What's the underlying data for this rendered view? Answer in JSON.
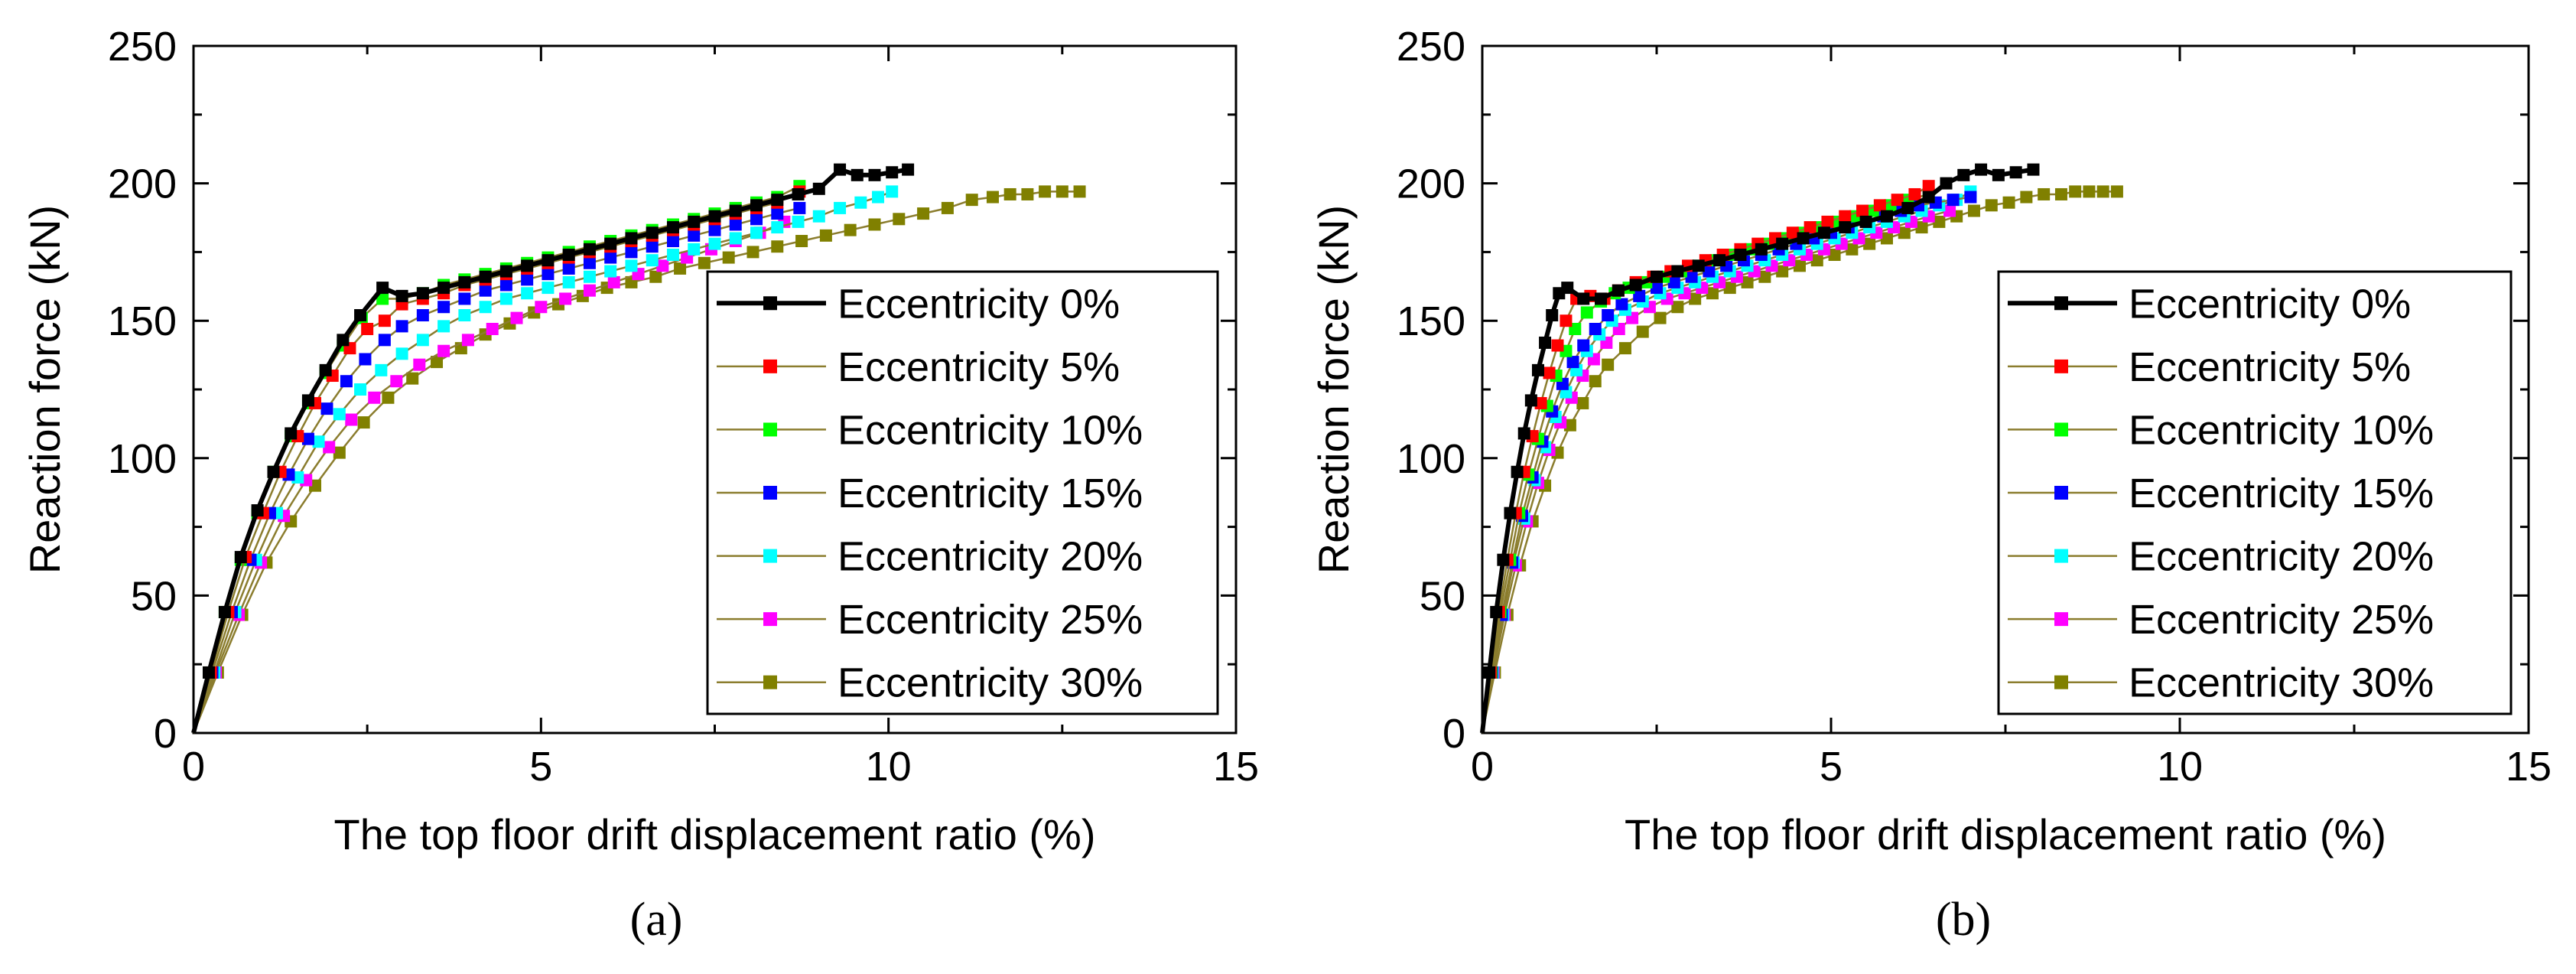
{
  "colors": {
    "e0": "#000000",
    "e5": "#ff0000",
    "e10": "#00ff00",
    "e15": "#0000ff",
    "e20": "#00ffff",
    "e25": "#ff00ff",
    "e30": "#808000",
    "thin_line": "#8b7d2e"
  },
  "chart_data": [
    {
      "panel": "a",
      "caption": "(a)",
      "type": "line",
      "xlabel": "The top floor drift displacement ratio (%)",
      "ylabel": "Reaction force (kN)",
      "xlim": [
        0,
        15
      ],
      "ylim": [
        0,
        250
      ],
      "xticks": [
        "0",
        "5",
        "10",
        "15"
      ],
      "yticks": [
        "0",
        "50",
        "100",
        "150",
        "200",
        "250"
      ],
      "legend_position": "right",
      "series": [
        {
          "name": "Eccentricity 0%",
          "color_key": "e0",
          "x": [
            0,
            0.22,
            0.45,
            0.68,
            0.92,
            1.15,
            1.4,
            1.65,
            1.9,
            2.15,
            2.4,
            2.72,
            3.0,
            3.3,
            3.6,
            3.9,
            4.2,
            4.5,
            4.8,
            5.1,
            5.4,
            5.7,
            6.0,
            6.3,
            6.6,
            6.9,
            7.2,
            7.5,
            7.8,
            8.1,
            8.4,
            8.7,
            9.0,
            9.3,
            9.55,
            9.8,
            10.05,
            10.28
          ],
          "y": [
            0,
            22,
            44,
            64,
            81,
            95,
            109,
            121,
            132,
            143,
            152,
            162,
            159,
            160,
            162,
            164,
            166,
            168,
            170,
            172,
            174,
            176,
            178,
            180,
            182,
            184,
            186,
            188,
            190,
            192,
            194,
            196,
            198,
            205,
            203,
            203,
            204,
            205
          ]
        },
        {
          "name": "Eccentricity 5%",
          "color_key": "e5",
          "x": [
            0,
            0.25,
            0.5,
            0.75,
            1.0,
            1.25,
            1.5,
            1.75,
            2.0,
            2.25,
            2.5,
            2.75,
            3.0,
            3.3,
            3.6,
            3.9,
            4.2,
            4.5,
            4.8,
            5.1,
            5.4,
            5.7,
            6.0,
            6.3,
            6.6,
            6.9,
            7.2,
            7.5,
            7.8,
            8.1,
            8.4,
            8.72
          ],
          "y": [
            0,
            22,
            44,
            64,
            80,
            95,
            108,
            120,
            130,
            140,
            147,
            150,
            156,
            158,
            160,
            163,
            165,
            167,
            169,
            171,
            173,
            175,
            177,
            179,
            181,
            183,
            185,
            187,
            189,
            191,
            193,
            197
          ]
        },
        {
          "name": "Eccentricity 10%",
          "color_key": "e10",
          "x": [
            0,
            0.22,
            0.45,
            0.68,
            0.92,
            1.15,
            1.4,
            1.65,
            1.9,
            2.15,
            2.42,
            2.72,
            3.0,
            3.3,
            3.6,
            3.9,
            4.2,
            4.5,
            4.8,
            5.1,
            5.4,
            5.7,
            6.0,
            6.3,
            6.6,
            6.9,
            7.2,
            7.5,
            7.8,
            8.1,
            8.4,
            8.72
          ],
          "y": [
            0,
            22,
            44,
            63,
            80,
            95,
            108,
            120,
            131,
            141,
            151,
            158,
            158,
            160,
            163,
            165,
            167,
            169,
            171,
            173,
            175,
            177,
            179,
            181,
            183,
            185,
            187,
            189,
            191,
            193,
            195,
            199
          ]
        },
        {
          "name": "Eccentricity 15%",
          "color_key": "e15",
          "x": [
            0,
            0.27,
            0.55,
            0.82,
            1.1,
            1.37,
            1.65,
            1.92,
            2.2,
            2.47,
            2.75,
            3.0,
            3.3,
            3.6,
            3.9,
            4.2,
            4.5,
            4.8,
            5.1,
            5.4,
            5.7,
            6.0,
            6.3,
            6.6,
            6.9,
            7.2,
            7.5,
            7.8,
            8.1,
            8.4,
            8.72
          ],
          "y": [
            0,
            22,
            44,
            63,
            80,
            94,
            107,
            118,
            128,
            136,
            143,
            148,
            152,
            155,
            158,
            161,
            163,
            165,
            167,
            169,
            171,
            173,
            175,
            177,
            179,
            181,
            183,
            185,
            187,
            189,
            191
          ]
        },
        {
          "name": "Eccentricity 20%",
          "color_key": "e20",
          "x": [
            0,
            0.3,
            0.6,
            0.9,
            1.2,
            1.5,
            1.8,
            2.1,
            2.4,
            2.7,
            3.0,
            3.3,
            3.6,
            3.9,
            4.2,
            4.5,
            4.8,
            5.1,
            5.4,
            5.7,
            6.0,
            6.3,
            6.6,
            6.9,
            7.2,
            7.5,
            7.8,
            8.1,
            8.4,
            8.7,
            9.0,
            9.3,
            9.6,
            9.85,
            10.05
          ],
          "y": [
            0,
            22,
            44,
            63,
            80,
            93,
            106,
            116,
            125,
            132,
            138,
            143,
            148,
            152,
            155,
            158,
            160,
            162,
            164,
            166,
            168,
            170,
            172,
            174,
            176,
            178,
            180,
            182,
            184,
            186,
            188,
            191,
            193,
            195,
            197
          ]
        },
        {
          "name": "Eccentricity 25%",
          "color_key": "e25",
          "x": [
            0,
            0.32,
            0.65,
            0.97,
            1.3,
            1.62,
            1.95,
            2.27,
            2.6,
            2.92,
            3.25,
            3.6,
            3.95,
            4.3,
            4.65,
            5.0,
            5.35,
            5.7,
            6.05,
            6.4,
            6.75,
            7.1,
            7.45,
            7.8,
            8.15,
            8.5
          ],
          "y": [
            0,
            22,
            43,
            62,
            79,
            92,
            104,
            114,
            122,
            128,
            134,
            139,
            143,
            147,
            151,
            155,
            158,
            161,
            164,
            167,
            170,
            173,
            176,
            179,
            182,
            186
          ]
        },
        {
          "name": "Eccentricity 30%",
          "color_key": "e30",
          "x": [
            0,
            0.35,
            0.7,
            1.05,
            1.4,
            1.75,
            2.1,
            2.45,
            2.8,
            3.15,
            3.5,
            3.85,
            4.2,
            4.55,
            4.9,
            5.25,
            5.6,
            5.95,
            6.3,
            6.65,
            7.0,
            7.35,
            7.7,
            8.05,
            8.4,
            8.75,
            9.1,
            9.45,
            9.8,
            10.15,
            10.5,
            10.85,
            11.2,
            11.5,
            11.75,
            12.0,
            12.25,
            12.5,
            12.75
          ],
          "y": [
            0,
            22,
            43,
            62,
            77,
            90,
            102,
            113,
            122,
            129,
            135,
            140,
            145,
            149,
            153,
            156,
            159,
            162,
            164,
            166,
            169,
            171,
            173,
            175,
            177,
            179,
            181,
            183,
            185,
            187,
            189,
            191,
            194,
            195,
            196,
            196,
            197,
            197,
            197
          ]
        }
      ]
    },
    {
      "panel": "b",
      "caption": "(b)",
      "type": "line",
      "xlabel": "The top floor drift displacement ratio (%)",
      "ylabel": "Reaction force (kN)",
      "xlim": [
        0,
        15
      ],
      "ylim": [
        0,
        250
      ],
      "xticks": [
        "0",
        "5",
        "10",
        "15"
      ],
      "yticks": [
        "0",
        "50",
        "100",
        "150",
        "200",
        "250"
      ],
      "legend_position": "right",
      "series": [
        {
          "name": "Eccentricity 0%",
          "color_key": "e0",
          "x": [
            0,
            0.1,
            0.2,
            0.3,
            0.4,
            0.5,
            0.6,
            0.7,
            0.8,
            0.9,
            1.0,
            1.1,
            1.22,
            1.45,
            1.7,
            1.95,
            2.2,
            2.5,
            2.8,
            3.1,
            3.4,
            3.7,
            4.0,
            4.3,
            4.6,
            4.9,
            5.2,
            5.5,
            5.8,
            6.1,
            6.4,
            6.65,
            6.9,
            7.15,
            7.4,
            7.65,
            7.9
          ],
          "y": [
            0,
            22,
            44,
            63,
            80,
            95,
            109,
            121,
            132,
            142,
            152,
            160,
            162,
            158,
            158,
            161,
            163,
            166,
            168,
            170,
            172,
            174,
            176,
            178,
            180,
            182,
            184,
            186,
            188,
            191,
            195,
            200,
            203,
            205,
            203,
            204,
            205
          ]
        },
        {
          "name": "Eccentricity 5%",
          "color_key": "e5",
          "x": [
            0,
            0.12,
            0.24,
            0.36,
            0.48,
            0.6,
            0.72,
            0.84,
            0.96,
            1.08,
            1.2,
            1.35,
            1.55,
            1.75,
            1.95,
            2.2,
            2.45,
            2.7,
            2.95,
            3.2,
            3.45,
            3.7,
            3.95,
            4.2,
            4.45,
            4.7,
            4.95,
            5.2,
            5.45,
            5.7,
            5.95,
            6.2,
            6.4
          ],
          "y": [
            0,
            22,
            44,
            63,
            80,
            95,
            108,
            120,
            131,
            141,
            150,
            158,
            159,
            158,
            161,
            164,
            166,
            168,
            170,
            172,
            174,
            176,
            178,
            180,
            182,
            184,
            186,
            188,
            190,
            192,
            194,
            196,
            199
          ]
        },
        {
          "name": "Eccentricity 10%",
          "color_key": "e10",
          "x": [
            0,
            0.13,
            0.26,
            0.4,
            0.53,
            0.66,
            0.8,
            0.93,
            1.06,
            1.2,
            1.33,
            1.5,
            1.7,
            1.9,
            2.1,
            2.35,
            2.6,
            2.85,
            3.1,
            3.35,
            3.6,
            3.85,
            4.1,
            4.35,
            4.6,
            4.85,
            5.1,
            5.35,
            5.6,
            5.85,
            6.1,
            6.4
          ],
          "y": [
            0,
            22,
            44,
            63,
            80,
            94,
            107,
            119,
            130,
            139,
            147,
            153,
            157,
            160,
            162,
            164,
            166,
            168,
            170,
            172,
            174,
            176,
            178,
            180,
            182,
            184,
            186,
            188,
            190,
            192,
            194,
            196
          ]
        },
        {
          "name": "Eccentricity 15%",
          "color_key": "e15",
          "x": [
            0,
            0.14,
            0.28,
            0.43,
            0.57,
            0.72,
            0.86,
            1.0,
            1.15,
            1.3,
            1.45,
            1.62,
            1.8,
            2.0,
            2.25,
            2.5,
            2.75,
            3.0,
            3.25,
            3.5,
            3.75,
            4.0,
            4.25,
            4.5,
            4.75,
            5.0,
            5.25,
            5.5,
            5.75,
            6.0,
            6.25,
            6.5,
            6.75,
            7.0
          ],
          "y": [
            0,
            22,
            43,
            62,
            79,
            93,
            106,
            117,
            127,
            135,
            141,
            147,
            152,
            156,
            159,
            162,
            164,
            166,
            168,
            170,
            172,
            174,
            176,
            178,
            180,
            182,
            184,
            186,
            188,
            190,
            192,
            193,
            194,
            195
          ]
        },
        {
          "name": "Eccentricity 20%",
          "color_key": "e20",
          "x": [
            0,
            0.15,
            0.3,
            0.45,
            0.6,
            0.75,
            0.9,
            1.05,
            1.2,
            1.35,
            1.5,
            1.68,
            1.86,
            2.05,
            2.3,
            2.55,
            2.8,
            3.05,
            3.3,
            3.55,
            3.8,
            4.05,
            4.3,
            4.55,
            4.8,
            5.05,
            5.3,
            5.55,
            5.8,
            6.05,
            6.3,
            6.55,
            6.8,
            7.0
          ],
          "y": [
            0,
            22,
            43,
            62,
            78,
            92,
            104,
            115,
            124,
            132,
            139,
            145,
            150,
            154,
            157,
            160,
            162,
            164,
            166,
            168,
            170,
            172,
            174,
            176,
            178,
            180,
            182,
            184,
            186,
            188,
            190,
            192,
            194,
            197
          ]
        },
        {
          "name": "Eccentricity 25%",
          "color_key": "e25",
          "x": [
            0,
            0.16,
            0.32,
            0.48,
            0.64,
            0.8,
            0.96,
            1.12,
            1.28,
            1.44,
            1.6,
            1.78,
            1.96,
            2.15,
            2.4,
            2.65,
            2.9,
            3.15,
            3.4,
            3.65,
            3.9,
            4.15,
            4.4,
            4.65,
            4.9,
            5.15,
            5.4,
            5.65,
            5.9,
            6.15,
            6.4,
            6.7
          ],
          "y": [
            0,
            22,
            43,
            61,
            77,
            91,
            103,
            113,
            122,
            130,
            136,
            142,
            147,
            151,
            155,
            158,
            160,
            162,
            164,
            166,
            168,
            170,
            172,
            174,
            176,
            178,
            180,
            182,
            184,
            186,
            188,
            190
          ]
        },
        {
          "name": "Eccentricity 30%",
          "color_key": "e30",
          "x": [
            0,
            0.18,
            0.36,
            0.54,
            0.72,
            0.9,
            1.08,
            1.26,
            1.44,
            1.62,
            1.8,
            2.05,
            2.3,
            2.55,
            2.8,
            3.05,
            3.3,
            3.55,
            3.8,
            4.05,
            4.3,
            4.55,
            4.8,
            5.05,
            5.3,
            5.55,
            5.8,
            6.05,
            6.3,
            6.55,
            6.8,
            7.05,
            7.3,
            7.55,
            7.8,
            8.05,
            8.3,
            8.5,
            8.7,
            8.9,
            9.1
          ],
          "y": [
            0,
            22,
            43,
            61,
            77,
            90,
            102,
            112,
            120,
            128,
            134,
            140,
            146,
            151,
            155,
            158,
            160,
            162,
            164,
            166,
            168,
            170,
            172,
            174,
            176,
            178,
            180,
            182,
            184,
            186,
            188,
            190,
            192,
            193,
            195,
            196,
            196,
            197,
            197,
            197,
            197
          ]
        }
      ]
    }
  ]
}
